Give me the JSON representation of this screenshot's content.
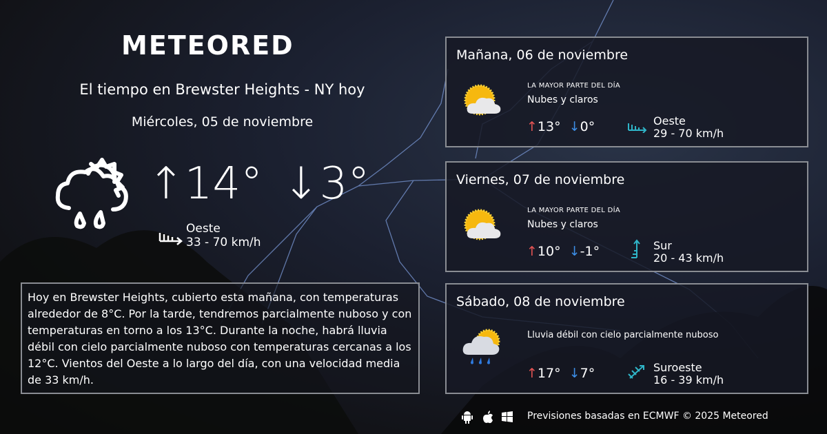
{
  "brand": "METEORED",
  "title": "El tiempo en Brewster Heights - NY hoy",
  "today": {
    "date": "Miércoles, 05 de noviembre",
    "icon": "rain-cloud-sun-icon",
    "max": "↑14°",
    "min": "↓3°",
    "wind_dir": "Oeste",
    "wind_speed": "33 - 70 km/h"
  },
  "description": "Hoy en Brewster Heights, cubierto esta mañana, con temperaturas alrededor de 8°C. Por la tarde, tendremos parcialmente nuboso y con temperaturas en torno a los 13°C. Durante la noche, habrá lluvia débil con cielo parcialmente nuboso  con temperaturas cercanas a los 12°C. Vientos del Oeste a lo largo del día, con una velocidad media de 33 km/h.",
  "forecast": [
    {
      "day": "Mañana, 06 de noviembre",
      "label": "LA MAYOR PARTE DEL DÍA",
      "condition": "Nubes y claros",
      "icon": "sun-cloud-icon",
      "max": "13°",
      "min": "0°",
      "wind_dir": "Oeste",
      "wind_speed": "29 - 70 km/h",
      "wind_icon": "wind-west-icon"
    },
    {
      "day": "Viernes, 07 de noviembre",
      "label": "LA MAYOR PARTE DEL DÍA",
      "condition": "Nubes y claros",
      "icon": "sun-cloud-icon",
      "max": "10°",
      "min": "-1°",
      "wind_dir": "Sur",
      "wind_speed": "20 - 43 km/h",
      "wind_icon": "wind-south-icon"
    },
    {
      "day": "Sábado, 08 de noviembre",
      "condition": "Lluvia débil con cielo parcialmente nuboso",
      "icon": "rain-sun-cloud-icon",
      "max": "17°",
      "min": "7°",
      "wind_dir": "Suroeste",
      "wind_speed": "16 - 39 km/h",
      "wind_icon": "wind-southwest-icon"
    }
  ],
  "footer": "Previsiones basadas en ECMWF © 2025 Meteored",
  "colors": {
    "up": "#e65454",
    "down": "#3d8ee6",
    "wind": "#2fb5c8"
  }
}
